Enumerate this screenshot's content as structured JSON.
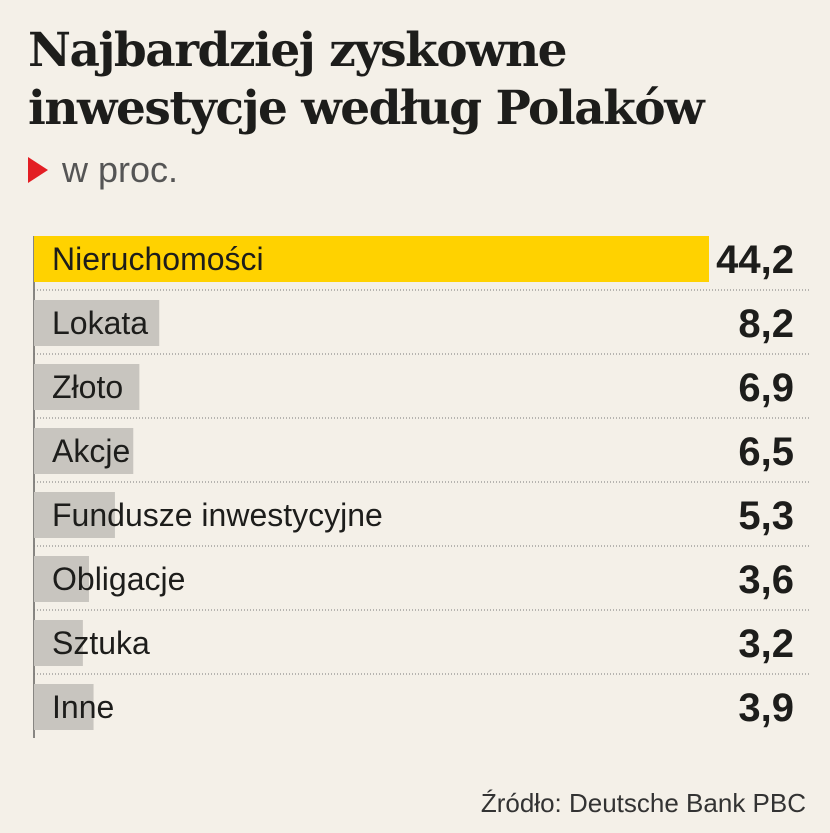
{
  "header": {
    "title": "Najbardziej zyskowne inwestycje według Polaków",
    "subtitle": "w proc.",
    "accent_color": "#e31e24"
  },
  "footer": {
    "source": "Źródło: Deutsche Bank PBC"
  },
  "colors": {
    "highlight_bar": "#ffd200",
    "bar": "#c8c5bf",
    "divider": "#1d1d1b"
  },
  "chart_data": {
    "type": "bar",
    "orientation": "horizontal",
    "categories": [
      "Nieruchomości",
      "Lokata",
      "Złoto",
      "Akcje",
      "Fundusze inwestycyjne",
      "Obligacje",
      "Sztuka",
      "Inne"
    ],
    "values": [
      44.2,
      8.2,
      6.9,
      6.5,
      5.3,
      3.6,
      3.2,
      3.9
    ],
    "labels": [
      "44,2",
      "8,2",
      "6,9",
      "6,5",
      "5,3",
      "3,6",
      "3,2",
      "3,9"
    ],
    "highlight_index": 0,
    "xlim": [
      0,
      44.2
    ],
    "grid": false
  }
}
